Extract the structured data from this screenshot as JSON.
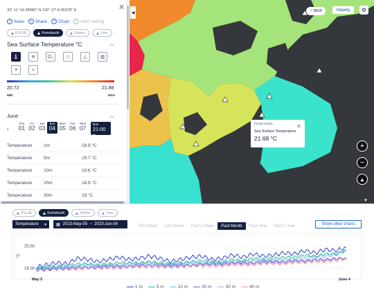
{
  "panel": {
    "coords": "33° 11' 14.28980\" N 132° 27' 8.36378\" E",
    "actions": [
      {
        "label": "Save",
        "icon": "plus-icon"
      },
      {
        "label": "Share",
        "icon": "share-icon"
      },
      {
        "label": "Chart",
        "icon": "chart-icon"
      },
      {
        "label": "Alert setting",
        "icon": "alert-icon"
      }
    ],
    "stations": [
      {
        "label": "PULSE",
        "active": false
      },
      {
        "label": "Komobuchi",
        "active": true
      },
      {
        "label": "Shinko",
        "active": false
      },
      {
        "label": "Yusu",
        "active": false
      }
    ],
    "param_title": "Sea Surface Temperature °C",
    "legend_min": "20.72",
    "legend_max": "21.88",
    "legend_min_label": "MIN",
    "legend_max_label": "MAX",
    "month": "June",
    "days": [
      {
        "w": "Thu",
        "n": "01"
      },
      {
        "w": "Fri",
        "n": "02"
      },
      {
        "w": "Sat",
        "n": "03"
      },
      {
        "w": "Sun",
        "n": "04",
        "active": true
      },
      {
        "w": "Mon",
        "n": "05"
      },
      {
        "w": "Tue",
        "n": "06"
      },
      {
        "w": "Wed",
        "n": "07"
      }
    ],
    "time_label": "time",
    "time_value": "21:00",
    "depth_rows": [
      {
        "param": "Temperature",
        "depth": "1m",
        "value": "19.9 °C"
      },
      {
        "param": "Temperature",
        "depth": "5m",
        "value": "19.7 °C"
      },
      {
        "param": "Temperature",
        "depth": "10m",
        "value": "19.6 °C"
      },
      {
        "param": "Temperature",
        "depth": "20m",
        "value": "18.9 °C"
      },
      {
        "param": "Temperature",
        "depth": "30m",
        "value": "19 °C"
      }
    ]
  },
  "map": {
    "new_badge": "NEW",
    "inquiry": "Inquiry",
    "popup": {
      "kind": "hourly-mean",
      "series": "Sea Surface Temperature",
      "value": "21.68 °C"
    }
  },
  "bottom": {
    "stations": [
      {
        "label": "PULSE",
        "active": false
      },
      {
        "label": "Komobuchi",
        "active": true
      },
      {
        "label": "Shinko",
        "active": false
      },
      {
        "label": "Yusu",
        "active": false
      }
    ],
    "param_select": "Temperature",
    "date_range": "2023-May-05  ~  2023-Jun-04",
    "periods": [
      {
        "label": "This Week",
        "active": false
      },
      {
        "label": "Last Week",
        "active": false
      },
      {
        "label": "Past 2 Week",
        "active": false
      },
      {
        "label": "Past Month",
        "active": true
      },
      {
        "label": "Past Year",
        "active": false
      },
      {
        "label": "Past 2 Year",
        "active": false
      }
    ],
    "show_other": "Show other charts"
  },
  "chart_data": {
    "type": "line",
    "ylabel": "°C",
    "yticks": [
      "20.00",
      "18.00"
    ],
    "ylim": [
      17.4,
      20.8
    ],
    "xticks": [
      "May 5",
      "June 4"
    ],
    "x": [
      1,
      2,
      3,
      4,
      5,
      6,
      7,
      8,
      9,
      10,
      11,
      12,
      13,
      14,
      15,
      16,
      17,
      18,
      19,
      20,
      21,
      22,
      23,
      24,
      25,
      26,
      27,
      28,
      29,
      30,
      31
    ],
    "series": [
      {
        "name": "1 m",
        "color": "#2c3fd6",
        "values": [
          18.1,
          18.3,
          18.5,
          18.4,
          18.9,
          18.8,
          18.6,
          18.8,
          19.0,
          18.8,
          18.9,
          19.1,
          18.9,
          18.6,
          18.8,
          19.0,
          19.1,
          18.8,
          18.9,
          19.2,
          19.0,
          19.3,
          19.1,
          19.2,
          19.4,
          19.3,
          19.6,
          19.4,
          19.7,
          19.6,
          19.9
        ]
      },
      {
        "name": "5 m",
        "color": "#1fb8a0",
        "values": [
          18.0,
          18.1,
          18.2,
          18.2,
          18.4,
          18.4,
          18.3,
          18.4,
          18.5,
          18.5,
          18.5,
          18.6,
          18.5,
          18.4,
          18.5,
          18.6,
          18.7,
          18.6,
          18.6,
          18.8,
          18.7,
          18.9,
          18.8,
          18.9,
          19.0,
          19.0,
          19.2,
          19.1,
          19.3,
          19.3,
          19.7
        ]
      },
      {
        "name": "10 m",
        "color": "#7fb6e8",
        "values": [
          17.9,
          18.0,
          18.1,
          18.1,
          18.2,
          18.3,
          18.2,
          18.3,
          18.3,
          18.4,
          18.4,
          18.5,
          18.4,
          18.3,
          18.4,
          18.5,
          18.5,
          18.5,
          18.5,
          18.6,
          18.6,
          18.7,
          18.7,
          18.7,
          18.8,
          18.8,
          19.0,
          19.0,
          19.1,
          19.2,
          19.6
        ]
      },
      {
        "name": "20 m",
        "color": "#6a5fd0",
        "values": [
          17.9,
          17.9,
          18.0,
          18.0,
          18.1,
          18.1,
          18.1,
          18.2,
          18.2,
          18.2,
          18.3,
          18.3,
          18.3,
          18.2,
          18.3,
          18.3,
          18.4,
          18.4,
          18.4,
          18.5,
          18.5,
          18.5,
          18.6,
          18.6,
          18.6,
          18.7,
          18.7,
          18.8,
          18.8,
          18.9,
          18.9
        ]
      },
      {
        "name": "30 m",
        "color": "#c79be6",
        "values": [
          17.8,
          17.9,
          17.9,
          17.9,
          18.0,
          18.0,
          18.0,
          18.1,
          18.1,
          18.1,
          18.2,
          18.2,
          18.2,
          18.1,
          18.2,
          18.2,
          18.3,
          18.3,
          18.3,
          18.4,
          18.4,
          18.4,
          18.5,
          18.5,
          18.5,
          18.6,
          18.6,
          18.7,
          18.7,
          18.8,
          19.0
        ]
      },
      {
        "name": "40 m",
        "color": "#f2a49a",
        "values": [
          17.8,
          17.8,
          17.9,
          17.9,
          17.9,
          18.0,
          18.0,
          18.0,
          18.0,
          18.1,
          18.1,
          18.1,
          18.1,
          18.1,
          18.1,
          18.2,
          18.2,
          18.2,
          18.2,
          18.3,
          18.3,
          18.3,
          18.4,
          18.4,
          18.4,
          18.5,
          18.5,
          18.6,
          18.6,
          18.7,
          18.8
        ]
      }
    ]
  }
}
